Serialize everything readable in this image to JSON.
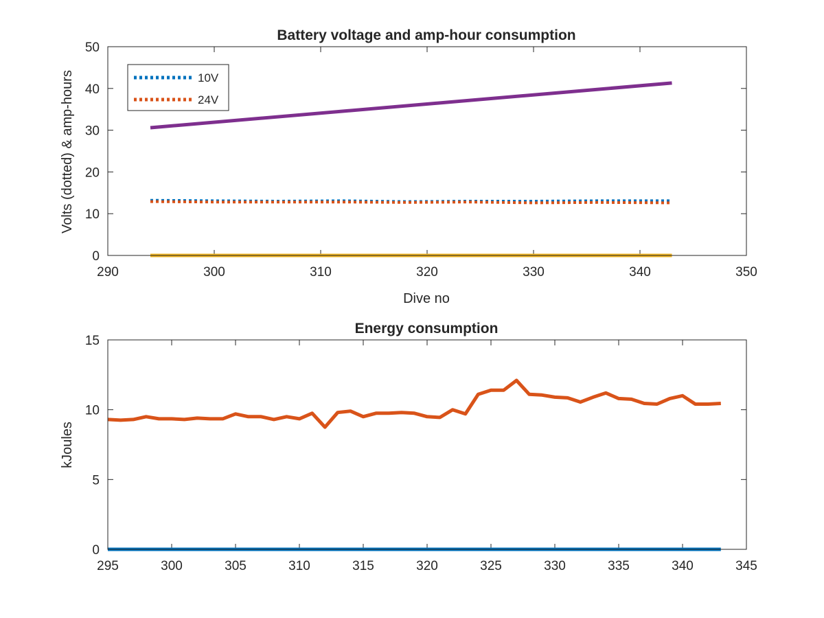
{
  "chart_data": [
    {
      "type": "line",
      "title": "Battery voltage and amp-hour consumption",
      "xlabel": "Dive no",
      "ylabel": "Volts (dotted) & amp-hours",
      "xlim": [
        290,
        350
      ],
      "ylim": [
        0,
        50
      ],
      "xticks": [
        "290",
        "300",
        "310",
        "320",
        "330",
        "340",
        "350"
      ],
      "yticks": [
        "0",
        "10",
        "20",
        "30",
        "40",
        "50"
      ],
      "grid": false,
      "legend_position": "top-left",
      "series": [
        {
          "name": "10V",
          "color": "#0072BD",
          "style": "dotted",
          "x": [
            294,
            300,
            306,
            312,
            318,
            324,
            330,
            336,
            343
          ],
          "y": [
            13.2,
            13.1,
            13.0,
            13.1,
            12.9,
            13.0,
            13.0,
            13.1,
            13.1
          ]
        },
        {
          "name": "24V",
          "color": "#D95319",
          "style": "dotted",
          "x": [
            294,
            300,
            306,
            312,
            318,
            324,
            330,
            336,
            343
          ],
          "y": [
            12.9,
            12.8,
            12.8,
            12.8,
            12.7,
            12.8,
            12.6,
            12.7,
            12.6
          ]
        },
        {
          "color": "#EDB120",
          "style": "solid",
          "x": [
            294,
            343
          ],
          "y": [
            0,
            0
          ]
        },
        {
          "color": "#7E2F8E",
          "style": "solid",
          "x": [
            294,
            343
          ],
          "y": [
            30.6,
            41.3
          ]
        }
      ]
    },
    {
      "type": "line",
      "title": "Energy consumption",
      "xlabel": "",
      "ylabel": "kJoules",
      "xlim": [
        295,
        345
      ],
      "ylim": [
        0,
        15
      ],
      "xticks": [
        "295",
        "300",
        "305",
        "310",
        "315",
        "320",
        "325",
        "330",
        "335",
        "340",
        "345"
      ],
      "yticks": [
        "0",
        "5",
        "10",
        "15"
      ],
      "grid": false,
      "series": [
        {
          "color": "#0072BD",
          "style": "solid",
          "x": [
            295,
            343
          ],
          "y": [
            0,
            0
          ]
        },
        {
          "color": "#D95319",
          "style": "solid",
          "x": [
            295,
            296,
            297,
            298,
            299,
            300,
            301,
            302,
            303,
            304,
            305,
            306,
            307,
            308,
            309,
            310,
            311,
            312,
            313,
            314,
            315,
            316,
            317,
            318,
            319,
            320,
            321,
            322,
            323,
            324,
            325,
            326,
            327,
            328,
            329,
            330,
            331,
            332,
            333,
            334,
            335,
            336,
            337,
            338,
            339,
            340,
            341,
            342,
            343
          ],
          "y": [
            9.3,
            9.25,
            9.3,
            9.5,
            9.35,
            9.35,
            9.3,
            9.4,
            9.35,
            9.35,
            9.7,
            9.5,
            9.5,
            9.3,
            9.5,
            9.35,
            9.75,
            8.75,
            9.8,
            9.9,
            9.5,
            9.75,
            9.75,
            9.8,
            9.75,
            9.5,
            9.45,
            10.0,
            9.7,
            11.1,
            11.4,
            11.4,
            12.1,
            11.1,
            11.05,
            10.9,
            10.85,
            10.55,
            10.9,
            11.2,
            10.8,
            10.75,
            10.45,
            10.4,
            10.8,
            11.0,
            10.4,
            10.4,
            10.45
          ]
        }
      ]
    }
  ]
}
